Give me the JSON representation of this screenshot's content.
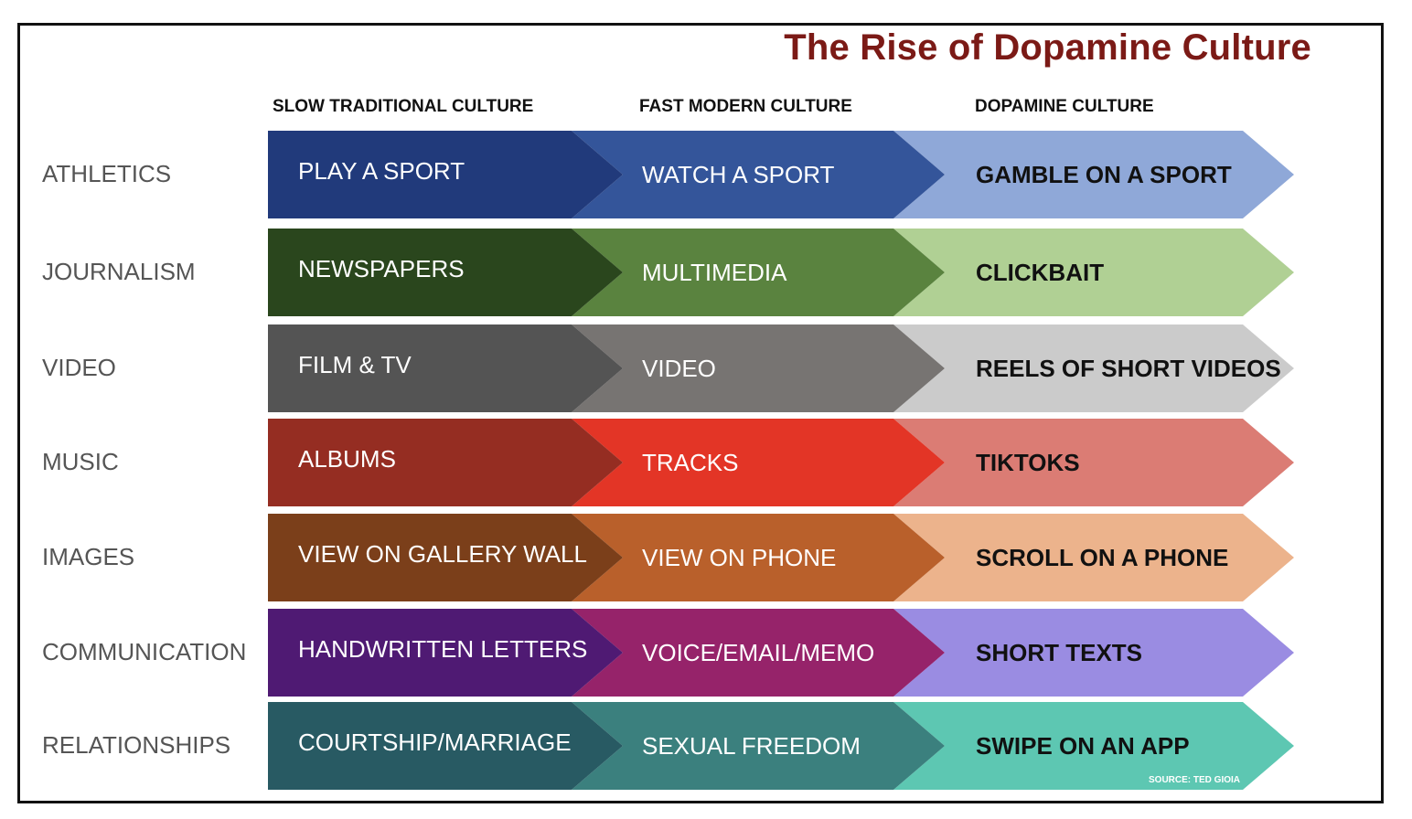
{
  "title": "The Rise of Dopamine Culture",
  "columns": [
    "SLOW TRADITIONAL CULTURE",
    "FAST MODERN CULTURE",
    "DOPAMINE CULTURE"
  ],
  "rows": [
    {
      "label": "ATHLETICS",
      "cells": [
        "PLAY A SPORT",
        "WATCH A SPORT",
        "GAMBLE ON A SPORT"
      ],
      "colors": [
        "#213a7b",
        "#34559a",
        "#8fa8d8"
      ]
    },
    {
      "label": "JOURNALISM",
      "cells": [
        "NEWSPAPERS",
        "MULTIMEDIA",
        "CLICKBAIT"
      ],
      "colors": [
        "#2a461d",
        "#5a833f",
        "#b0d094"
      ]
    },
    {
      "label": "VIDEO",
      "cells": [
        "FILM &  TV",
        "VIDEO",
        "REELS OF SHORT VIDEOS"
      ],
      "colors": [
        "#545454",
        "#777472",
        "#cbcbcb"
      ]
    },
    {
      "label": "MUSIC",
      "cells": [
        "ALBUMS",
        "TRACKS",
        "TIKTOKS"
      ],
      "colors": [
        "#952d22",
        "#e33526",
        "#db7c74"
      ]
    },
    {
      "label": "IMAGES",
      "cells": [
        "VIEW ON GALLERY WALL",
        "VIEW ON PHONE",
        "SCROLL ON A PHONE"
      ],
      "colors": [
        "#7b3f1a",
        "#b9602b",
        "#ecb38c"
      ]
    },
    {
      "label": "COMMUNICATION",
      "cells": [
        "HANDWRITTEN LETTERS",
        "VOICE/EMAIL/MEMO",
        "SHORT TEXTS"
      ],
      "colors": [
        "#4f1a73",
        "#96236a",
        "#9a8ce2"
      ]
    },
    {
      "label": "RELATIONSHIPS",
      "cells": [
        "COURTSHIP/MARRIAGE",
        "SEXUAL FREEDOM",
        "SWIPE ON AN APP"
      ],
      "colors": [
        "#285a63",
        "#3b807e",
        "#5dc7b2"
      ]
    }
  ],
  "text_colors": {
    "dark_cells": "#ffffff",
    "light_cells": "#111111"
  },
  "source": "SOURCE: TED GIOIA"
}
